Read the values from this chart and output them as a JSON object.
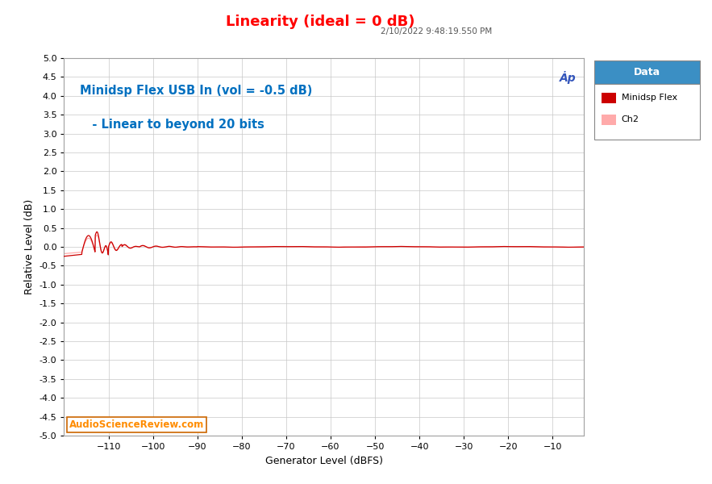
{
  "title": "Linearity (ideal = 0 dB)",
  "title_color": "#ff0000",
  "timestamp": "2/10/2022 9:48:19.550 PM",
  "xlabel": "Generator Level (dBFS)",
  "ylabel": "Relative Level (dB)",
  "xlim": [
    -120,
    -3
  ],
  "ylim": [
    -5,
    5
  ],
  "xticks": [
    -110,
    -100,
    -90,
    -80,
    -70,
    -60,
    -50,
    -40,
    -30,
    -20,
    -10
  ],
  "yticks": [
    -5.0,
    -4.5,
    -4.0,
    -3.5,
    -3.0,
    -2.5,
    -2.0,
    -1.5,
    -1.0,
    -0.5,
    0.0,
    0.5,
    1.0,
    1.5,
    2.0,
    2.5,
    3.0,
    3.5,
    4.0,
    4.5,
    5.0
  ],
  "annotation_line1": "Minidsp Flex USB In (vol = -0.5 dB)",
  "annotation_line2": "   - Linear to beyond 20 bits",
  "annotation_color": "#0070c0",
  "watermark": "AudioScienceReview.com",
  "watermark_color": "#ff8c00",
  "ch1_color": "#cc0000",
  "ch2_color": "#ffaaaa",
  "legend_header_bg": "#3b8fc4",
  "legend_header_text": "#ffffff",
  "bg_color": "#ffffff",
  "plot_bg_color": "#ffffff",
  "grid_color": "#c8c8c8",
  "ap_logo_color": "#3355bb",
  "x_start": -120,
  "x_end": -3
}
